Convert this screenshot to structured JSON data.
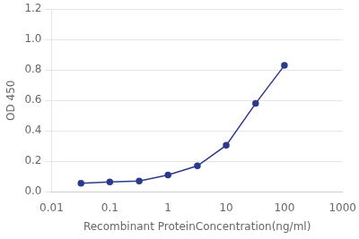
{
  "chart_data": {
    "type": "line",
    "x": [
      0.032,
      0.1,
      0.32,
      1.0,
      3.2,
      10.0,
      32.0,
      100.0
    ],
    "values": [
      0.055,
      0.065,
      0.07,
      0.11,
      0.17,
      0.305,
      0.58,
      0.83
    ],
    "color": "#2d3a8c",
    "marker": "o",
    "xlabel": "Recombinant ProteinConcentration(ng/ml)",
    "ylabel": "OD 450",
    "log": "x",
    "xlim": [
      0.01,
      1000
    ],
    "ylim": [
      0,
      1.2
    ],
    "xticks": [
      0.01,
      0.1,
      1,
      10,
      100,
      1000
    ],
    "yticks": [
      {
        "value": 0,
        "label": "0.0"
      },
      0.2,
      0.4,
      0.6,
      0.8,
      {
        "value": 1,
        "label": "1.0"
      },
      1.2
    ],
    "grid": "y"
  }
}
